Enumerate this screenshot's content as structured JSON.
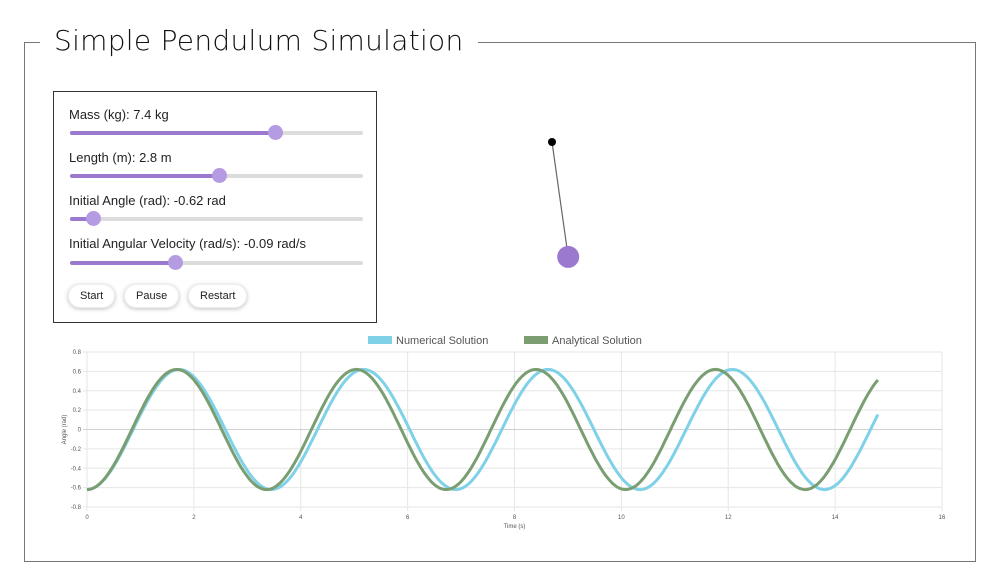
{
  "app": {
    "title": "Simple Pendulum Simulation"
  },
  "controls": {
    "mass": {
      "label": "Mass (kg): 7.4 kg",
      "fraction": 0.7
    },
    "length": {
      "label": "Length (m): 2.8 m",
      "fraction": 0.51
    },
    "angle": {
      "label": "Initial Angle (rad): -0.62 rad",
      "fraction": 0.08
    },
    "velocity": {
      "label": "Initial Angular Velocity (rad/s): -0.09 rad/s",
      "fraction": 0.36
    },
    "buttons": {
      "start": "Start",
      "pause": "Pause",
      "restart": "Restart"
    },
    "accent": "#9a79cf"
  },
  "pendulum": {
    "angle_rad": -0.14,
    "bob_color": "#9a79cf",
    "pivot_color": "#000000"
  },
  "chart_data": {
    "type": "line",
    "xlabel": "Time (s)",
    "ylabel": "Angle (rad)",
    "xlim": [
      0,
      16
    ],
    "ylim": [
      -0.8,
      0.8
    ],
    "xticks": [
      0,
      2,
      4,
      6,
      8,
      10,
      12,
      14,
      16
    ],
    "yticks": [
      0.8,
      0.6,
      0.4,
      0.2,
      0,
      -0.2,
      -0.4,
      -0.6,
      -0.8
    ],
    "grid": true,
    "legend_position": "top-center",
    "x_end": 14.8,
    "series": [
      {
        "name": "Numerical Solution",
        "color": "#7fd1e8",
        "amplitude": 0.62,
        "period": 3.45
      },
      {
        "name": "Analytical Solution",
        "color": "#7a9e72",
        "amplitude": 0.62,
        "period": 3.36
      }
    ]
  }
}
